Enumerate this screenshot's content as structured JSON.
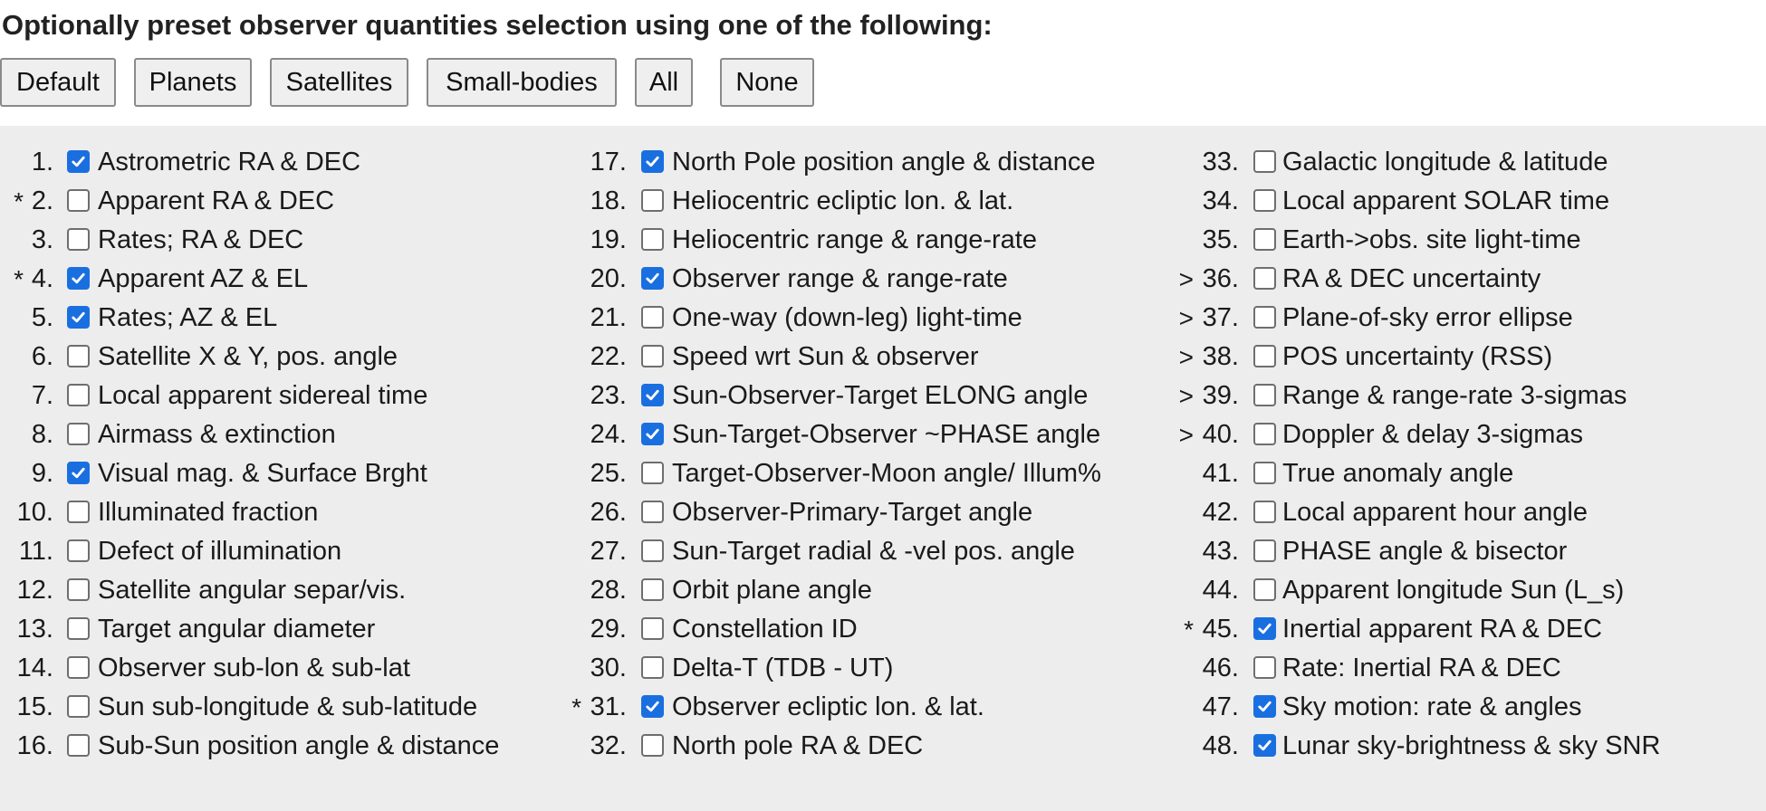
{
  "heading": "Optionally preset observer quantities selection using one of the following:",
  "presets": [
    "Default",
    "Planets",
    "Satellites",
    "Small-bodies",
    "All",
    "None"
  ],
  "columns": [
    [
      {
        "marker": "",
        "num": "1.",
        "label": "Astrometric RA & DEC",
        "checked": true
      },
      {
        "marker": "*",
        "num": "2.",
        "label": "Apparent RA & DEC",
        "checked": false
      },
      {
        "marker": "",
        "num": "3.",
        "label": "Rates; RA & DEC",
        "checked": false
      },
      {
        "marker": "*",
        "num": "4.",
        "label": "Apparent AZ & EL",
        "checked": true
      },
      {
        "marker": "",
        "num": "5.",
        "label": "Rates; AZ & EL",
        "checked": true
      },
      {
        "marker": "",
        "num": "6.",
        "label": "Satellite X & Y, pos. angle",
        "checked": false
      },
      {
        "marker": "",
        "num": "7.",
        "label": "Local apparent sidereal time",
        "checked": false
      },
      {
        "marker": "",
        "num": "8.",
        "label": "Airmass & extinction",
        "checked": false
      },
      {
        "marker": "",
        "num": "9.",
        "label": "Visual mag. & Surface Brght",
        "checked": true
      },
      {
        "marker": "",
        "num": "10.",
        "label": "Illuminated fraction",
        "checked": false
      },
      {
        "marker": "",
        "num": "11.",
        "label": "Defect of illumination",
        "checked": false
      },
      {
        "marker": "",
        "num": "12.",
        "label": "Satellite angular separ/vis.",
        "checked": false
      },
      {
        "marker": "",
        "num": "13.",
        "label": "Target angular diameter",
        "checked": false
      },
      {
        "marker": "",
        "num": "14.",
        "label": "Observer sub-lon & sub-lat",
        "checked": false
      },
      {
        "marker": "",
        "num": "15.",
        "label": "Sun sub-longitude & sub-latitude",
        "checked": false
      },
      {
        "marker": "",
        "num": "16.",
        "label": "Sub-Sun position angle & distance",
        "checked": false
      }
    ],
    [
      {
        "marker": "",
        "num": "17.",
        "label": "North Pole position angle & distance",
        "checked": true
      },
      {
        "marker": "",
        "num": "18.",
        "label": "Heliocentric ecliptic lon. & lat.",
        "checked": false
      },
      {
        "marker": "",
        "num": "19.",
        "label": "Heliocentric range & range-rate",
        "checked": false
      },
      {
        "marker": "",
        "num": "20.",
        "label": "Observer range & range-rate",
        "checked": true
      },
      {
        "marker": "",
        "num": "21.",
        "label": "One-way (down-leg) light-time",
        "checked": false
      },
      {
        "marker": "",
        "num": "22.",
        "label": "Speed wrt Sun & observer",
        "checked": false
      },
      {
        "marker": "",
        "num": "23.",
        "label": "Sun-Observer-Target ELONG angle",
        "checked": true
      },
      {
        "marker": "",
        "num": "24.",
        "label": "Sun-Target-Observer ~PHASE angle",
        "checked": true
      },
      {
        "marker": "",
        "num": "25.",
        "label": "Target-Observer-Moon angle/ Illum%",
        "checked": false
      },
      {
        "marker": "",
        "num": "26.",
        "label": "Observer-Primary-Target angle",
        "checked": false
      },
      {
        "marker": "",
        "num": "27.",
        "label": "Sun-Target radial & -vel pos. angle",
        "checked": false
      },
      {
        "marker": "",
        "num": "28.",
        "label": "Orbit plane angle",
        "checked": false
      },
      {
        "marker": "",
        "num": "29.",
        "label": "Constellation ID",
        "checked": false
      },
      {
        "marker": "",
        "num": "30.",
        "label": "Delta-T (TDB - UT)",
        "checked": false
      },
      {
        "marker": "*",
        "num": "31.",
        "label": "Observer ecliptic lon. & lat.",
        "checked": true
      },
      {
        "marker": "",
        "num": "32.",
        "label": "North pole RA & DEC",
        "checked": false
      }
    ],
    [
      {
        "marker": "",
        "num": "33.",
        "label": "Galactic longitude & latitude",
        "checked": false
      },
      {
        "marker": "",
        "num": "34.",
        "label": "Local apparent SOLAR time",
        "checked": false
      },
      {
        "marker": "",
        "num": "35.",
        "label": "Earth->obs. site light-time",
        "checked": false
      },
      {
        "marker": ">",
        "num": "36.",
        "label": "RA & DEC uncertainty",
        "checked": false
      },
      {
        "marker": ">",
        "num": "37.",
        "label": "Plane-of-sky error ellipse",
        "checked": false
      },
      {
        "marker": ">",
        "num": "38.",
        "label": "POS uncertainty (RSS)",
        "checked": false
      },
      {
        "marker": ">",
        "num": "39.",
        "label": "Range & range-rate 3-sigmas",
        "checked": false
      },
      {
        "marker": ">",
        "num": "40.",
        "label": "Doppler & delay 3-sigmas",
        "checked": false
      },
      {
        "marker": "",
        "num": "41.",
        "label": "True anomaly angle",
        "checked": false
      },
      {
        "marker": "",
        "num": "42.",
        "label": "Local apparent hour angle",
        "checked": false
      },
      {
        "marker": "",
        "num": "43.",
        "label": "PHASE angle & bisector",
        "checked": false
      },
      {
        "marker": "",
        "num": "44.",
        "label": "Apparent longitude Sun (L_s)",
        "checked": false
      },
      {
        "marker": "*",
        "num": "45.",
        "label": "Inertial apparent RA & DEC",
        "checked": true
      },
      {
        "marker": "",
        "num": "46.",
        "label": "Rate: Inertial RA & DEC",
        "checked": false
      },
      {
        "marker": "",
        "num": "47.",
        "label": "Sky motion: rate & angles",
        "checked": true
      },
      {
        "marker": "",
        "num": "48.",
        "label": "Lunar sky-brightness & sky SNR",
        "checked": true
      }
    ]
  ]
}
